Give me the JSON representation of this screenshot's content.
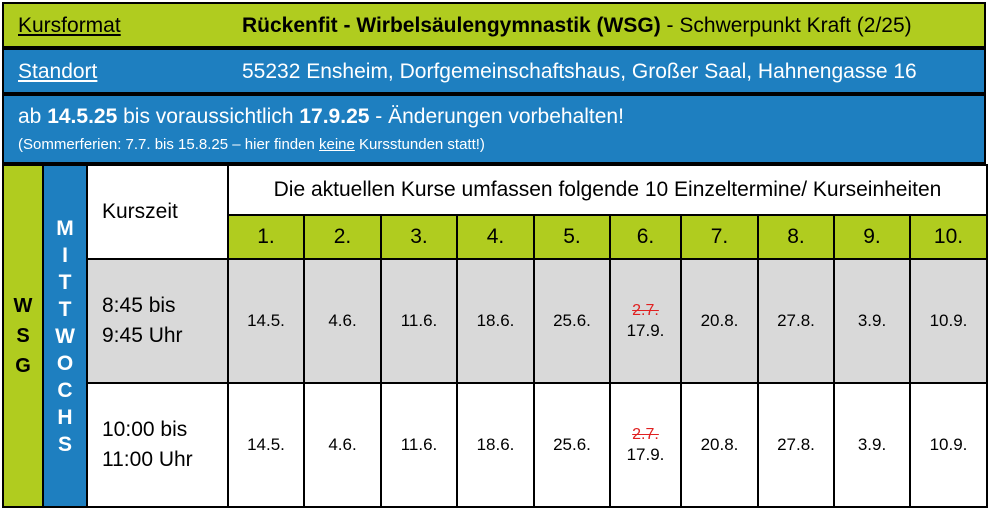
{
  "header": {
    "kursformat_label": "Kursformat",
    "kursformat_value_bold": "Rückenfit - Wirbelsäulengymnastik (WSG)",
    "kursformat_value_rest": " - Schwerpunkt Kraft (2/25)",
    "standort_label": "Standort",
    "standort_value": "55232 Ensheim, Dorfgemeinschaftshaus, Großer Saal, Hahnengasse 16"
  },
  "period": {
    "prefix": "ab ",
    "start": "14.5.25",
    "middle": " bis voraussichtlich ",
    "end": "17.9.25",
    "suffix": " - Änderungen vorbehalten!",
    "note_before": "(Sommerferien: 7.7. bis 15.8.25 – hier finden ",
    "note_keine": "keine",
    "note_after": " Kursstunden statt!)"
  },
  "table": {
    "side_label": [
      "W",
      "S",
      "G"
    ],
    "day_label": [
      "M",
      "I",
      "T",
      "T",
      "W",
      "O",
      "C",
      "H",
      "S"
    ],
    "kurszeit_label": "Kurszeit",
    "heading": "Die aktuellen Kurse umfassen folgende 10 Einzeltermine/ Kurseinheiten",
    "numbers": [
      "1.",
      "2.",
      "3.",
      "4.",
      "5.",
      "6.",
      "7.",
      "8.",
      "9.",
      "10."
    ],
    "rows": [
      {
        "time_line1": "8:45 bis",
        "time_line2": "9:45 Uhr",
        "dates": [
          "14.5.",
          "4.6.",
          "11.6.",
          "18.6.",
          "25.6.",
          "17.9.",
          "20.8.",
          "27.8.",
          "3.9.",
          "10.9."
        ],
        "cancelled_6": "2.7."
      },
      {
        "time_line1": "10:00 bis",
        "time_line2": "11:00 Uhr",
        "dates": [
          "14.5.",
          "4.6.",
          "11.6.",
          "18.6.",
          "25.6.",
          "17.9.",
          "20.8.",
          "27.8.",
          "3.9.",
          "10.9."
        ],
        "cancelled_6": "2.7."
      }
    ]
  },
  "colors": {
    "green": "#b0cc1f",
    "blue": "#1e7fc0",
    "grey": "#d9d9d9",
    "strike_red": "#e02020"
  }
}
